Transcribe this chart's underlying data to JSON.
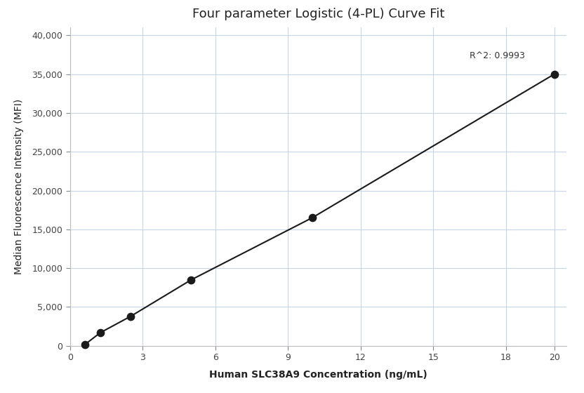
{
  "title": "Four parameter Logistic (4-PL) Curve Fit",
  "xlabel": "Human SLC38A9 Concentration (ng/mL)",
  "ylabel": "Median Fluorescence Intensity (MFI)",
  "x_data": [
    0.625,
    1.25,
    2.5,
    5.0,
    10.0,
    20.0
  ],
  "y_data": [
    200,
    1700,
    3800,
    8500,
    16500,
    35000
  ],
  "xlim": [
    0,
    20.5
  ],
  "ylim": [
    0,
    41000
  ],
  "xticks": [
    0,
    3,
    6,
    9,
    12,
    15,
    18,
    20
  ],
  "yticks": [
    0,
    5000,
    10000,
    15000,
    20000,
    25000,
    30000,
    35000,
    40000
  ],
  "ytick_labels": [
    "0",
    "5,000",
    "10,000",
    "15,000",
    "20,000",
    "25,000",
    "30,000",
    "35,000",
    "40,000"
  ],
  "r2_text": "R^2: 0.9993",
  "r2_x": 16.5,
  "r2_y": 36800,
  "dot_color": "#1a1a1a",
  "line_color": "#1a1a1a",
  "grid_color": "#c8d4e8",
  "background_color": "#ffffff",
  "title_fontsize": 13,
  "label_fontsize": 10,
  "tick_fontsize": 9,
  "dot_size": 55,
  "line_width": 1.5
}
